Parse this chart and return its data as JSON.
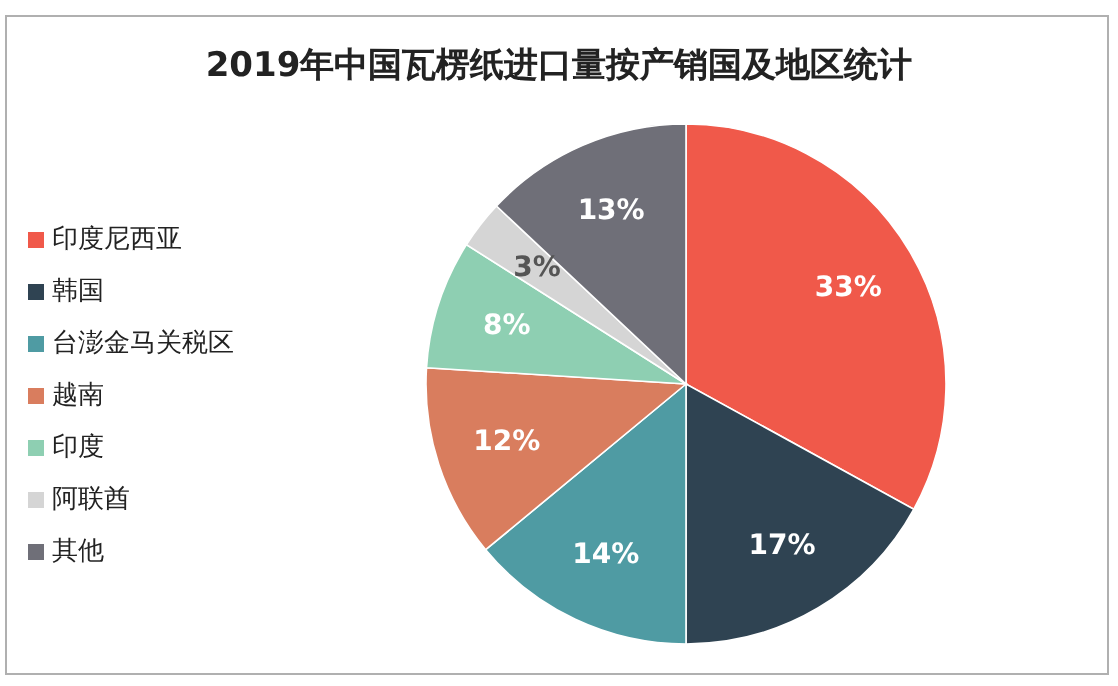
{
  "chart_data": {
    "type": "pie",
    "title": "2019年中国瓦楞纸进口量按产销国及地区统计",
    "categories": [
      "印度尼西亚",
      "韩国",
      "台澎金马关税区",
      "越南",
      "印度",
      "阿联酋",
      "其他"
    ],
    "values": [
      33,
      17,
      14,
      12,
      8,
      3,
      13
    ],
    "colors": [
      "#f0594a",
      "#2f4352",
      "#4f9ba3",
      "#d97d5e",
      "#8ecfb2",
      "#d5d5d5",
      "#6f6f78"
    ],
    "value_labels": [
      "33%",
      "17%",
      "14%",
      "12%",
      "8%",
      "3%",
      "13%"
    ],
    "legend": "left"
  }
}
